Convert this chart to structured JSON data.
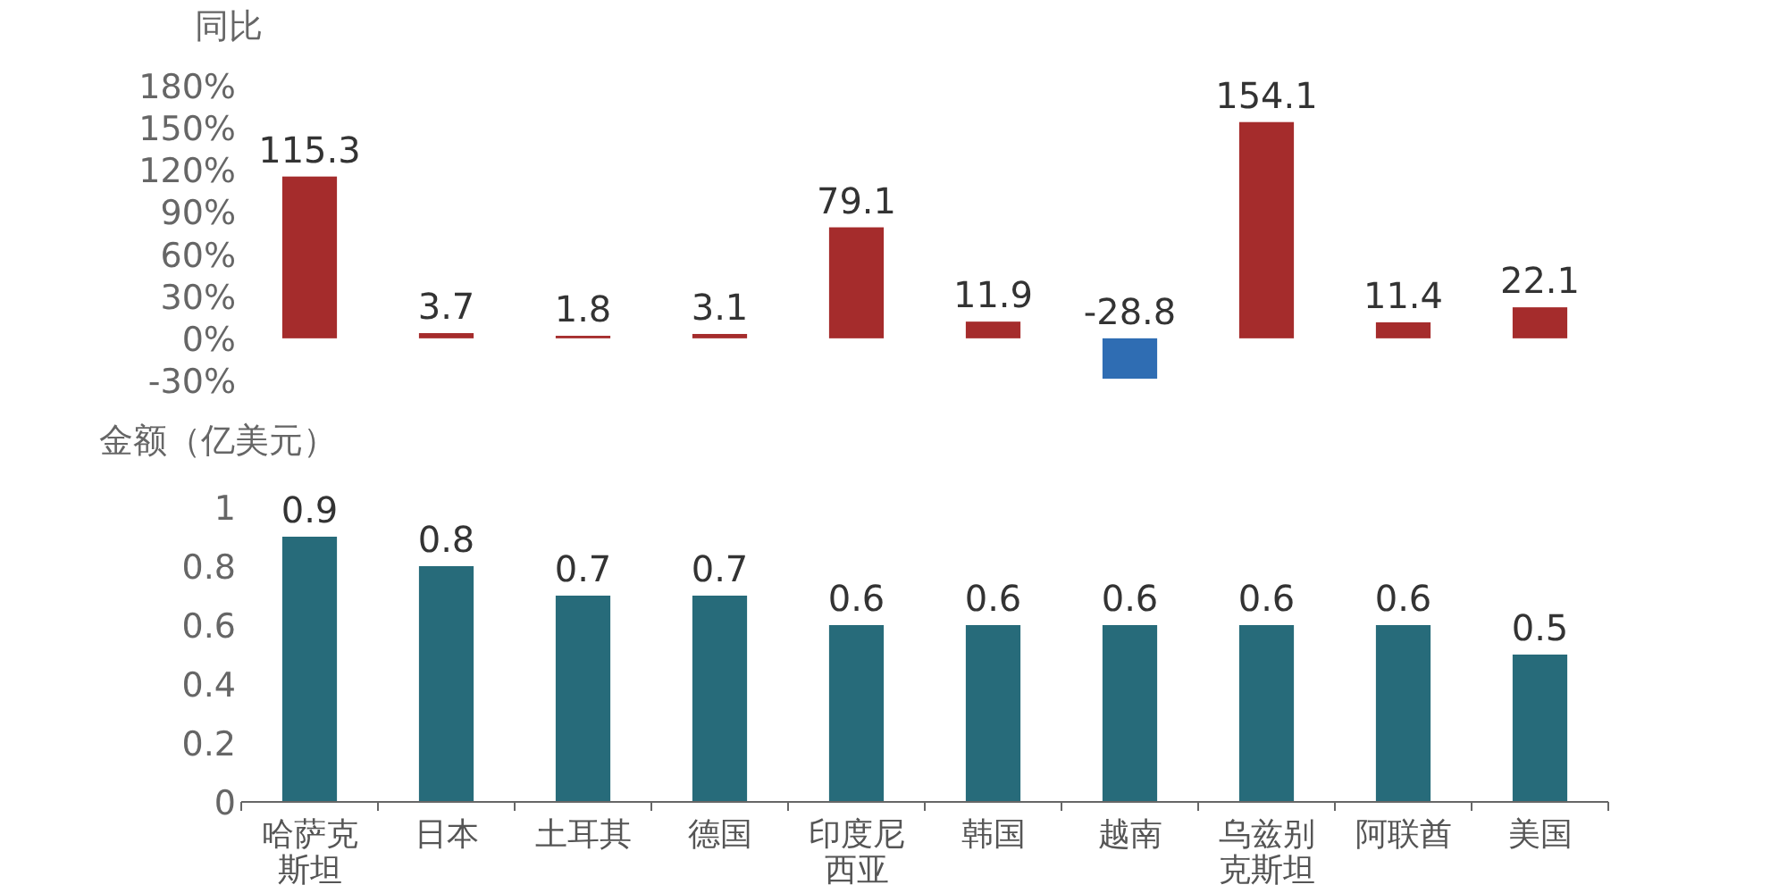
{
  "chart_data": [
    {
      "type": "bar",
      "ylabel": "同比",
      "categories": [
        "哈萨克斯坦",
        "日本",
        "土耳其",
        "德国",
        "印度尼西亚",
        "韩国",
        "越南",
        "乌兹别克斯坦",
        "阿联酋",
        "美国"
      ],
      "values": [
        115.3,
        3.7,
        1.8,
        3.1,
        79.1,
        11.9,
        -28.8,
        154.1,
        11.4,
        22.1
      ],
      "colors": [
        "#a52c2c",
        "#a52c2c",
        "#a52c2c",
        "#a52c2c",
        "#a52c2c",
        "#a52c2c",
        "#2f6db3",
        "#a52c2c",
        "#a52c2c",
        "#a52c2c"
      ],
      "ylim": [
        -30,
        180
      ],
      "yticks": [
        {
          "value": -30,
          "label": "-30%"
        },
        {
          "value": 0,
          "label": "0%"
        },
        {
          "value": 30,
          "label": "30%"
        },
        {
          "value": 60,
          "label": "60%"
        },
        {
          "value": 90,
          "label": "90%"
        },
        {
          "value": 120,
          "label": "120%"
        },
        {
          "value": 150,
          "label": "150%"
        },
        {
          "value": 180,
          "label": "180%"
        }
      ],
      "tick_labels": "y",
      "data_labels": true
    },
    {
      "type": "bar",
      "ylabel": "金额（亿美元）",
      "categories": [
        "哈萨克斯坦",
        "日本",
        "土耳其",
        "德国",
        "印度尼西亚",
        "韩国",
        "越南",
        "乌兹别克斯坦",
        "阿联酋",
        "美国"
      ],
      "values": [
        0.9,
        0.8,
        0.7,
        0.7,
        0.6,
        0.6,
        0.6,
        0.6,
        0.6,
        0.5
      ],
      "color": "#276b7a",
      "ylim": [
        0,
        1
      ],
      "yticks": [
        0,
        0.2,
        0.4,
        0.6,
        0.8,
        1
      ],
      "data_labels": true
    }
  ]
}
